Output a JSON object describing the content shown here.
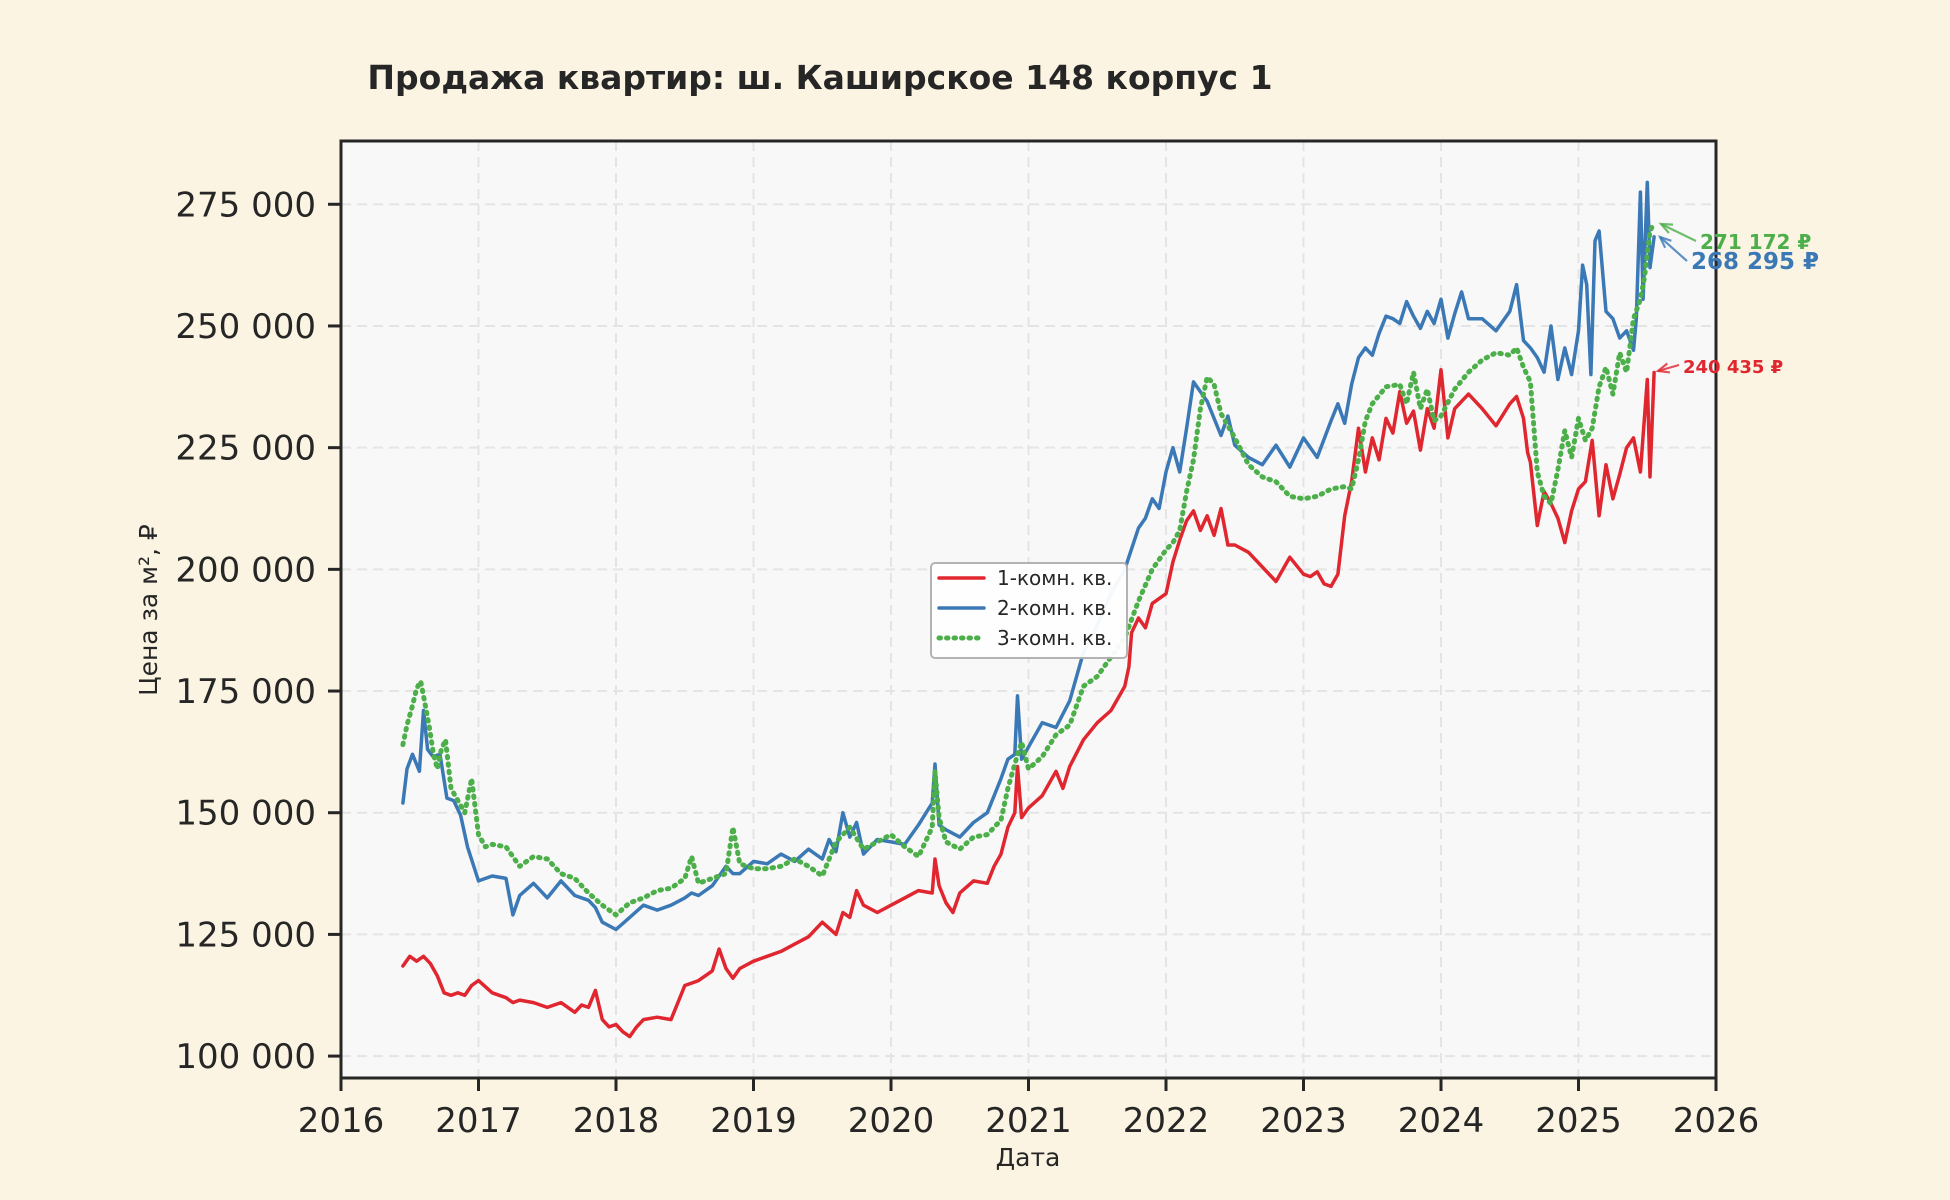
{
  "chart_data": {
    "type": "line",
    "title": "Продажа квартир: ш. Каширское 148 корпус 1",
    "xlabel": "Дата",
    "ylabel": "Цена за м², ₽",
    "xlim": [
      2016.0,
      2026.0
    ],
    "ylim": [
      95500,
      288000
    ],
    "grid": true,
    "legend_position": "center",
    "x_ticks": [
      2016,
      2017,
      2018,
      2019,
      2020,
      2021,
      2022,
      2023,
      2024,
      2025,
      2026
    ],
    "x_tick_labels": [
      "2016",
      "2017",
      "2018",
      "2019",
      "2020",
      "2021",
      "2022",
      "2023",
      "2024",
      "2025",
      "2026"
    ],
    "y_ticks": [
      100000,
      125000,
      150000,
      175000,
      200000,
      225000,
      250000,
      275000
    ],
    "y_tick_labels": [
      "100 000",
      "125 000",
      "150 000",
      "175 000",
      "200 000",
      "225 000",
      "250 000",
      "275 000"
    ],
    "series": [
      {
        "name": "1-комн. кв.",
        "color": "#e0262f",
        "style": "solid",
        "x": [
          2016.45,
          2016.5,
          2016.55,
          2016.6,
          2016.65,
          2016.7,
          2016.75,
          2016.8,
          2016.85,
          2016.9,
          2016.95,
          2017.0,
          2017.1,
          2017.2,
          2017.25,
          2017.3,
          2017.4,
          2017.5,
          2017.6,
          2017.7,
          2017.75,
          2017.8,
          2017.85,
          2017.9,
          2017.95,
          2018.0,
          2018.05,
          2018.1,
          2018.15,
          2018.2,
          2018.3,
          2018.4,
          2018.45,
          2018.5,
          2018.55,
          2018.6,
          2018.7,
          2018.75,
          2018.8,
          2018.85,
          2018.9,
          2019.0,
          2019.1,
          2019.2,
          2019.3,
          2019.4,
          2019.5,
          2019.6,
          2019.65,
          2019.7,
          2019.75,
          2019.8,
          2019.9,
          2020.0,
          2020.1,
          2020.2,
          2020.3,
          2020.32,
          2020.35,
          2020.4,
          2020.45,
          2020.5,
          2020.6,
          2020.7,
          2020.75,
          2020.8,
          2020.85,
          2020.9,
          2020.92,
          2020.95,
          2021.0,
          2021.1,
          2021.2,
          2021.25,
          2021.3,
          2021.4,
          2021.5,
          2021.6,
          2021.7,
          2021.73,
          2021.75,
          2021.8,
          2021.85,
          2021.9,
          2022.0,
          2022.05,
          2022.1,
          2022.15,
          2022.2,
          2022.25,
          2022.3,
          2022.35,
          2022.4,
          2022.45,
          2022.5,
          2022.6,
          2022.7,
          2022.8,
          2022.9,
          2023.0,
          2023.05,
          2023.1,
          2023.15,
          2023.2,
          2023.25,
          2023.3,
          2023.35,
          2023.4,
          2023.45,
          2023.5,
          2023.55,
          2023.6,
          2023.65,
          2023.7,
          2023.75,
          2023.8,
          2023.85,
          2023.9,
          2023.95,
          2024.0,
          2024.05,
          2024.1,
          2024.2,
          2024.3,
          2024.4,
          2024.5,
          2024.55,
          2024.6,
          2024.63,
          2024.65,
          2024.7,
          2024.75,
          2024.8,
          2024.85,
          2024.9,
          2024.95,
          2025.0,
          2025.05,
          2025.1,
          2025.15,
          2025.2,
          2025.25,
          2025.3,
          2025.35,
          2025.4,
          2025.45,
          2025.5,
          2025.52,
          2025.55
        ],
        "values": [
          118500,
          120500,
          119500,
          120500,
          119000,
          116500,
          113000,
          112500,
          113000,
          112500,
          114500,
          115500,
          113000,
          112000,
          111000,
          111500,
          111000,
          110000,
          111000,
          109000,
          110500,
          110000,
          113500,
          107500,
          106000,
          106500,
          105000,
          104000,
          106000,
          107500,
          108000,
          107500,
          111000,
          114500,
          115000,
          115500,
          117500,
          122000,
          118000,
          116000,
          118000,
          119500,
          120500,
          121500,
          123000,
          124500,
          127500,
          125000,
          129500,
          128500,
          134000,
          131000,
          129500,
          131000,
          132500,
          134000,
          133500,
          140500,
          135000,
          131500,
          129500,
          133500,
          136000,
          135500,
          139000,
          141500,
          147000,
          150000,
          159500,
          149000,
          151000,
          153500,
          158500,
          155000,
          159500,
          165000,
          168500,
          171000,
          176000,
          180000,
          187000,
          190000,
          188000,
          193000,
          195000,
          201500,
          206000,
          210000,
          212000,
          208000,
          211000,
          207000,
          212500,
          205000,
          205000,
          203500,
          200500,
          197500,
          202500,
          199000,
          198500,
          199500,
          197000,
          196500,
          199000,
          211000,
          218000,
          229000,
          220000,
          227000,
          222500,
          231000,
          228000,
          236500,
          230000,
          232500,
          224500,
          233000,
          229000,
          241000,
          227000,
          233000,
          236000,
          233000,
          229500,
          234000,
          235500,
          231000,
          224000,
          222000,
          209000,
          216000,
          213500,
          210500,
          205500,
          212000,
          216500,
          218000,
          226500,
          211000,
          221500,
          214500,
          219500,
          225000,
          227000,
          220000,
          239000,
          219000,
          240435
        ]
      },
      {
        "name": "2-комн. кв.",
        "color": "#3a78b6",
        "style": "solid",
        "x": [
          2016.45,
          2016.48,
          2016.52,
          2016.57,
          2016.6,
          2016.63,
          2016.67,
          2016.72,
          2016.77,
          2016.82,
          2016.87,
          2016.92,
          2017.0,
          2017.1,
          2017.2,
          2017.25,
          2017.3,
          2017.4,
          2017.5,
          2017.6,
          2017.7,
          2017.8,
          2017.85,
          2017.9,
          2018.0,
          2018.1,
          2018.2,
          2018.3,
          2018.4,
          2018.5,
          2018.55,
          2018.6,
          2018.7,
          2018.8,
          2018.85,
          2018.9,
          2019.0,
          2019.1,
          2019.2,
          2019.3,
          2019.4,
          2019.5,
          2019.55,
          2019.6,
          2019.65,
          2019.7,
          2019.75,
          2019.8,
          2019.9,
          2020.0,
          2020.1,
          2020.2,
          2020.3,
          2020.32,
          2020.35,
          2020.4,
          2020.5,
          2020.6,
          2020.7,
          2020.8,
          2020.85,
          2020.9,
          2020.92,
          2020.95,
          2021.0,
          2021.1,
          2021.2,
          2021.3,
          2021.4,
          2021.5,
          2021.55,
          2021.6,
          2021.7,
          2021.8,
          2021.85,
          2021.9,
          2021.95,
          2022.0,
          2022.05,
          2022.1,
          2022.15,
          2022.2,
          2022.3,
          2022.4,
          2022.45,
          2022.5,
          2022.6,
          2022.7,
          2022.8,
          2022.9,
          2023.0,
          2023.1,
          2023.2,
          2023.25,
          2023.3,
          2023.35,
          2023.4,
          2023.45,
          2023.5,
          2023.55,
          2023.6,
          2023.65,
          2023.7,
          2023.75,
          2023.8,
          2023.85,
          2023.9,
          2023.95,
          2024.0,
          2024.05,
          2024.1,
          2024.15,
          2024.2,
          2024.3,
          2024.4,
          2024.5,
          2024.55,
          2024.6,
          2024.65,
          2024.7,
          2024.75,
          2024.8,
          2024.85,
          2024.9,
          2024.95,
          2025.0,
          2025.03,
          2025.06,
          2025.09,
          2025.12,
          2025.15,
          2025.2,
          2025.25,
          2025.3,
          2025.35,
          2025.4,
          2025.42,
          2025.45,
          2025.47,
          2025.5,
          2025.52,
          2025.55
        ],
        "values": [
          152000,
          159000,
          162000,
          158500,
          171000,
          163000,
          161500,
          162000,
          153000,
          152500,
          149500,
          143000,
          136000,
          137000,
          136500,
          129000,
          133000,
          135500,
          132500,
          136000,
          133000,
          132000,
          130500,
          127500,
          126000,
          128500,
          131000,
          130000,
          131000,
          132500,
          133500,
          133000,
          135000,
          139000,
          137500,
          137500,
          140000,
          139500,
          141500,
          140000,
          142500,
          140500,
          144500,
          142000,
          150000,
          145000,
          148000,
          141500,
          144500,
          144000,
          143500,
          147500,
          152000,
          160000,
          147500,
          146500,
          145000,
          148000,
          150000,
          157000,
          161000,
          162000,
          174000,
          161000,
          163500,
          168500,
          167500,
          173000,
          183000,
          188500,
          192000,
          195000,
          200000,
          208500,
          210500,
          214500,
          212500,
          220000,
          225000,
          220000,
          229000,
          238500,
          234500,
          227500,
          231500,
          225500,
          223000,
          221500,
          225500,
          221000,
          227000,
          223000,
          230500,
          234000,
          230000,
          238000,
          243500,
          245500,
          244000,
          248500,
          252000,
          251500,
          250500,
          255000,
          252000,
          249500,
          253000,
          250500,
          255500,
          247500,
          252500,
          257000,
          251500,
          251500,
          249000,
          253000,
          258500,
          247000,
          245500,
          243500,
          240500,
          250000,
          239000,
          245500,
          240000,
          249000,
          262500,
          258500,
          240000,
          267500,
          269500,
          253000,
          251500,
          247500,
          249000,
          245000,
          251500,
          277500,
          255500,
          279500,
          262000,
          268295
        ]
      },
      {
        "name": "3-комн. кв.",
        "color": "#4caf4a",
        "style": "dotted",
        "x": [
          2016.45,
          2016.48,
          2016.52,
          2016.55,
          2016.58,
          2016.61,
          2016.64,
          2016.67,
          2016.7,
          2016.73,
          2016.76,
          2016.8,
          2016.85,
          2016.9,
          2016.95,
          2017.0,
          2017.05,
          2017.1,
          2017.2,
          2017.3,
          2017.4,
          2017.5,
          2017.6,
          2017.7,
          2017.8,
          2017.9,
          2018.0,
          2018.1,
          2018.2,
          2018.3,
          2018.4,
          2018.5,
          2018.55,
          2018.6,
          2018.7,
          2018.8,
          2018.85,
          2018.9,
          2019.0,
          2019.1,
          2019.2,
          2019.3,
          2019.4,
          2019.5,
          2019.6,
          2019.7,
          2019.8,
          2019.9,
          2020.0,
          2020.1,
          2020.2,
          2020.3,
          2020.32,
          2020.35,
          2020.4,
          2020.5,
          2020.6,
          2020.7,
          2020.8,
          2020.85,
          2020.9,
          2020.95,
          2021.0,
          2021.1,
          2021.2,
          2021.3,
          2021.4,
          2021.5,
          2021.6,
          2021.7,
          2021.8,
          2021.9,
          2022.0,
          2022.05,
          2022.1,
          2022.15,
          2022.2,
          2022.25,
          2022.3,
          2022.35,
          2022.4,
          2022.5,
          2022.6,
          2022.7,
          2022.8,
          2022.9,
          2023.0,
          2023.1,
          2023.2,
          2023.3,
          2023.35,
          2023.4,
          2023.45,
          2023.5,
          2023.6,
          2023.7,
          2023.75,
          2023.8,
          2023.85,
          2023.9,
          2023.95,
          2024.0,
          2024.1,
          2024.2,
          2024.3,
          2024.4,
          2024.5,
          2024.55,
          2024.6,
          2024.65,
          2024.7,
          2024.75,
          2024.8,
          2024.85,
          2024.9,
          2024.95,
          2025.0,
          2025.05,
          2025.1,
          2025.15,
          2025.2,
          2025.25,
          2025.3,
          2025.35,
          2025.4,
          2025.45,
          2025.48,
          2025.52,
          2025.55
        ],
        "values": [
          164000,
          168000,
          172000,
          175500,
          177000,
          172500,
          168000,
          162500,
          159000,
          163000,
          165000,
          155000,
          152500,
          150000,
          157000,
          145500,
          143000,
          143500,
          143000,
          139000,
          141000,
          140500,
          137500,
          136500,
          133500,
          131000,
          129000,
          131500,
          132500,
          134000,
          134500,
          136500,
          141000,
          135500,
          136500,
          137500,
          147000,
          139500,
          138500,
          138500,
          139000,
          140500,
          139000,
          137000,
          144000,
          147000,
          142500,
          144000,
          145500,
          143000,
          141000,
          147000,
          158500,
          149000,
          144000,
          142500,
          145000,
          145500,
          148500,
          155000,
          160000,
          164500,
          159000,
          161500,
          166000,
          168000,
          176000,
          178000,
          182000,
          186000,
          193500,
          200000,
          204000,
          205500,
          208000,
          216000,
          222500,
          233000,
          239500,
          238000,
          232000,
          227000,
          221500,
          219000,
          218000,
          215000,
          214500,
          215000,
          216500,
          217000,
          216500,
          222500,
          230500,
          234000,
          237500,
          238000,
          234000,
          240500,
          233000,
          237000,
          230500,
          231500,
          237000,
          240500,
          243000,
          244500,
          244000,
          245500,
          241500,
          238500,
          220000,
          215000,
          213500,
          220500,
          228500,
          223000,
          231000,
          226500,
          229000,
          237500,
          241500,
          236000,
          244500,
          240500,
          251500,
          255500,
          260000,
          269500,
          271172
        ]
      }
    ],
    "annotations": [
      {
        "text": "271 172 ₽",
        "series": "3-комн. кв.",
        "x": 2025.55,
        "y": 271172,
        "color": "#4caf4a"
      },
      {
        "text": "268 295 ₽",
        "series": "2-комн. кв.",
        "x": 2025.55,
        "y": 268295,
        "color": "#3a78b6"
      },
      {
        "text": "240 435 ₽",
        "series": "1-комн. кв.",
        "x": 2025.55,
        "y": 240435,
        "color": "#e0262f"
      }
    ]
  }
}
